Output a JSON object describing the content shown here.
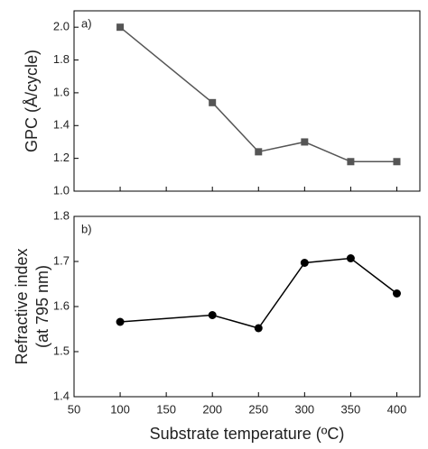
{
  "chart_data": [
    {
      "type": "line",
      "annotation": "a)",
      "ylabel": "GPC (Å/cycle)",
      "x": [
        100,
        200,
        250,
        300,
        350,
        400
      ],
      "series": [
        {
          "color": "#555555",
          "marker": "square",
          "values": [
            2.0,
            1.54,
            1.24,
            1.3,
            1.18,
            1.18
          ]
        }
      ],
      "xlim": [
        50,
        425
      ],
      "xticks": [
        50,
        100,
        150,
        200,
        250,
        300,
        350,
        400
      ],
      "ylim": [
        1.0,
        2.1
      ],
      "yticks": [
        {
          "value": 1.0,
          "label": "1.0"
        },
        {
          "value": 1.2,
          "label": "1.2"
        },
        {
          "value": 1.4,
          "label": "1.4"
        },
        {
          "value": 1.6,
          "label": "1.6"
        },
        {
          "value": 1.8,
          "label": "1.8"
        },
        {
          "value": 2.0,
          "label": "2.0"
        }
      ]
    },
    {
      "type": "line",
      "annotation": "b)",
      "ylabel": [
        "Refractive index",
        "(at 795 nm)"
      ],
      "xlabel": "Substrate temperature (ºC)",
      "x": [
        100,
        200,
        250,
        300,
        350,
        400
      ],
      "series": [
        {
          "color": "#000000",
          "marker": "circle",
          "values": [
            1.566,
            1.581,
            1.552,
            1.697,
            1.707,
            1.629
          ]
        }
      ],
      "xlim": [
        50,
        425
      ],
      "xticks": [
        50,
        100,
        150,
        200,
        250,
        300,
        350,
        400
      ],
      "ylim": [
        1.4,
        1.8
      ],
      "yticks": [
        1.4,
        1.5,
        1.6,
        1.7,
        1.8
      ]
    }
  ]
}
